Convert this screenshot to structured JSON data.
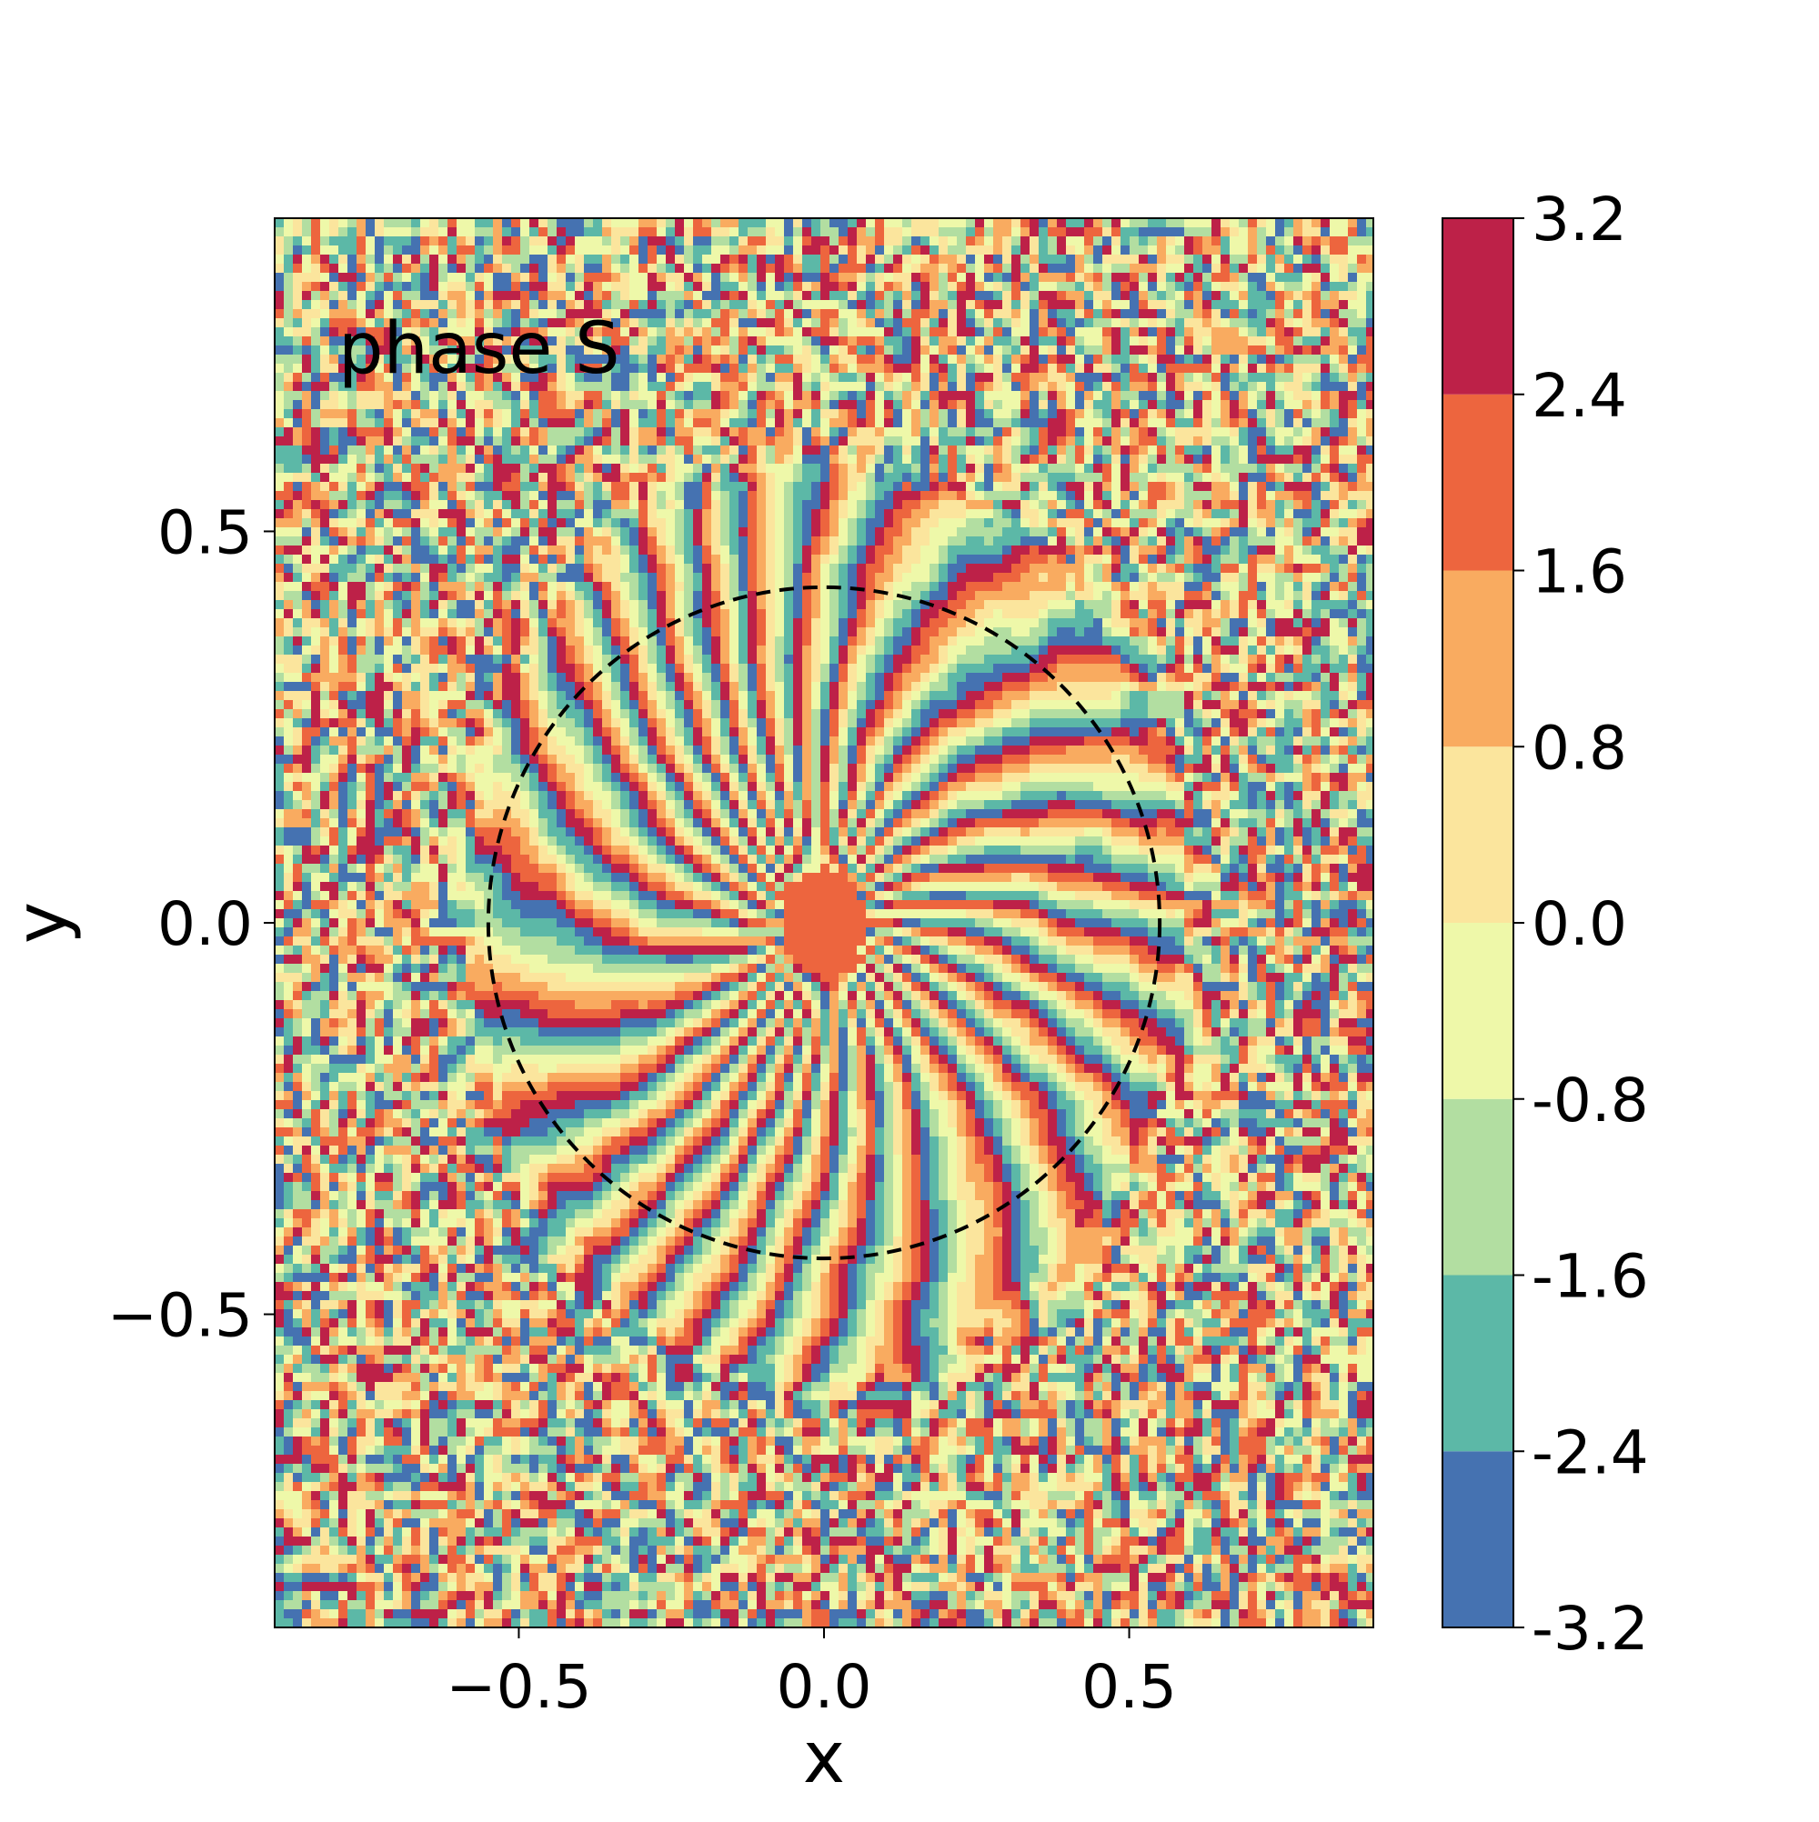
{
  "chart_data": {
    "type": "heatmap",
    "subtype": "filled-contour",
    "annotation": "phase S",
    "xlabel": "x",
    "ylabel": "y",
    "xlim": [
      -0.9,
      0.9
    ],
    "ylim": [
      -0.9,
      0.9
    ],
    "x_ticks": [
      -0.5,
      0.0,
      0.5
    ],
    "x_tick_labels": [
      "−0.5",
      "0.0",
      "0.5"
    ],
    "y_ticks": [
      -0.5,
      0.0,
      0.5
    ],
    "y_tick_labels": [
      "−0.5",
      "0.0",
      "0.5"
    ],
    "grid": false,
    "overlay": {
      "shape": "circle",
      "style": "dashed",
      "color": "#000000",
      "center": [
        0.0,
        0.0
      ],
      "radius": 0.55
    },
    "colorbar": {
      "levels": [
        -3.2,
        -2.4,
        -1.6,
        -0.8,
        0.0,
        0.8,
        1.6,
        2.4,
        3.2
      ],
      "tick_labels": [
        "-3.2",
        "-2.4",
        "-1.6",
        "-0.8",
        "0.0",
        "0.8",
        "1.6",
        "2.4",
        "3.2"
      ],
      "colors": [
        "#4572b1",
        "#5cb8a7",
        "#b2dea1",
        "#eef8a9",
        "#fbe59d",
        "#f9ab60",
        "#ed653e",
        "#bd2148"
      ]
    },
    "pattern": {
      "description": "radial arms of phase emanating from the centre inside the circle; noisy outside",
      "arm_count": 28
    }
  }
}
